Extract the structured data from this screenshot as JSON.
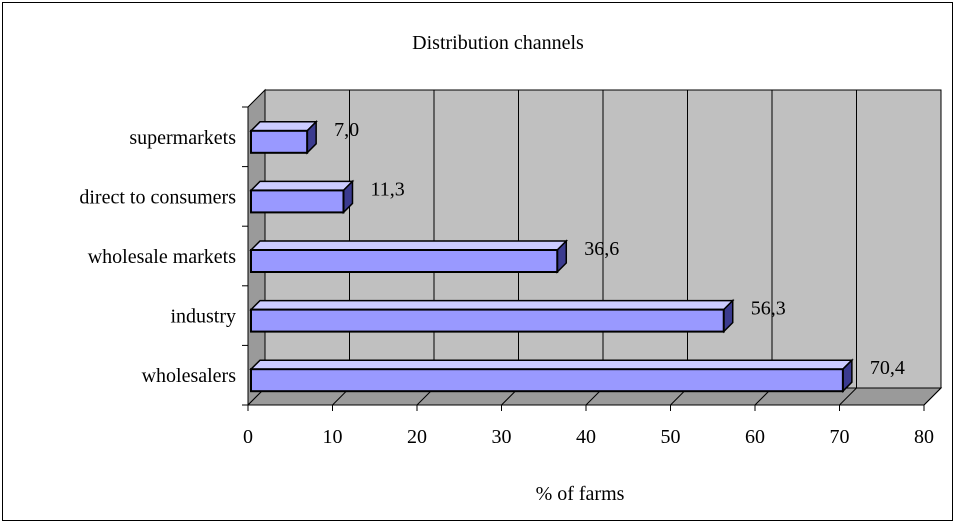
{
  "chart_data": {
    "type": "bar",
    "orientation": "horizontal",
    "title": "Distribution channels",
    "xlabel": "% of farms",
    "ylabel": "",
    "categories": [
      "supermarkets",
      "direct to consumers",
      "wholesale markets",
      "industry",
      "wholesalers"
    ],
    "values": [
      7.0,
      11.3,
      36.6,
      56.3,
      70.4
    ],
    "data_labels": [
      "7,0",
      "11,3",
      "36,6",
      "56,3",
      "70,4"
    ],
    "xlim": [
      0,
      80
    ],
    "xticks": [
      "0",
      "10",
      "20",
      "30",
      "40",
      "50",
      "60",
      "70",
      "80"
    ],
    "grid": true,
    "legend": "none",
    "colors": {
      "bar_front": "#9999ff",
      "bar_top": "#ccccff",
      "bar_side": "#3b3b8f",
      "wall": "#c0c0c0",
      "floor": "#9a9a9a",
      "gridline": "#000000"
    }
  }
}
